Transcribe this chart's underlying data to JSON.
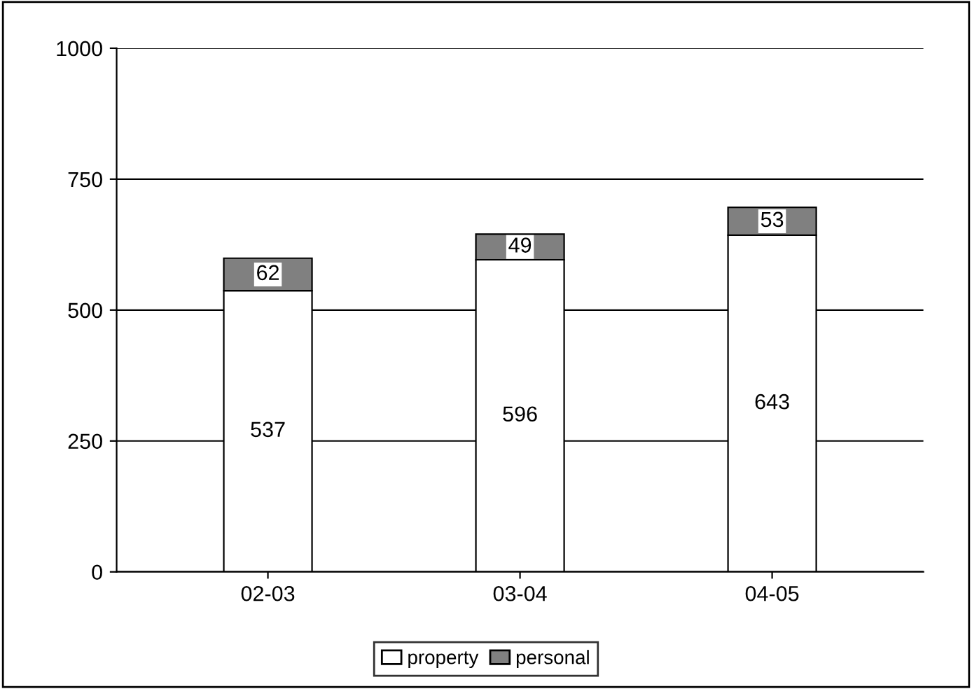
{
  "chart_data": {
    "type": "bar",
    "stacked": true,
    "categories": [
      "02-03",
      "03-04",
      "04-05"
    ],
    "series": [
      {
        "name": "property",
        "color": "#ffffff",
        "values": [
          537,
          596,
          643
        ]
      },
      {
        "name": "personal",
        "color": "#808080",
        "values": [
          62,
          49,
          53
        ]
      }
    ],
    "ylim": [
      0,
      1000
    ],
    "yticks": [
      0,
      250,
      500,
      750,
      1000
    ],
    "grid": "y",
    "legend": "bottom",
    "data_labels": true
  }
}
